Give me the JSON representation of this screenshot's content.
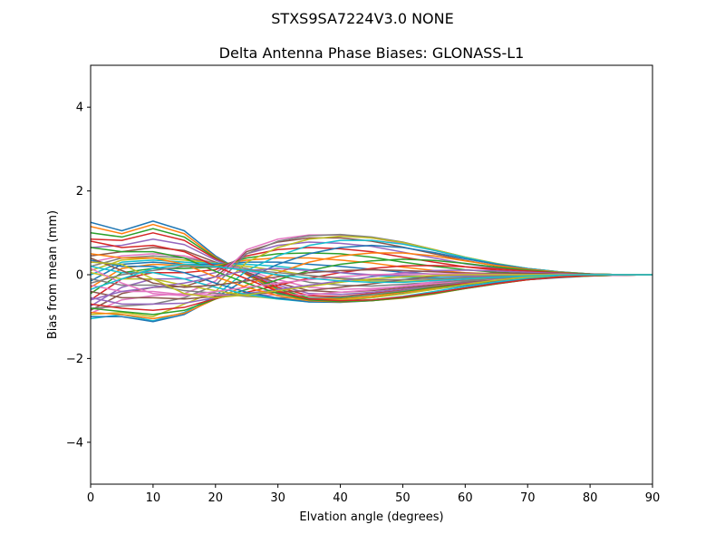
{
  "chart_data": {
    "type": "line",
    "suptitle": "STXS9SA7224V3.0 NONE",
    "title": "Delta Antenna Phase Biases: GLONASS-L1",
    "xlabel": "Elvation angle (degrees)",
    "ylabel": "Bias from mean (mm)",
    "xlim": [
      0,
      90
    ],
    "ylim": [
      -5,
      5
    ],
    "xticks": [
      0,
      10,
      20,
      30,
      40,
      50,
      60,
      70,
      80,
      90
    ],
    "yticks": [
      -4,
      -2,
      0,
      2,
      4
    ],
    "ytick_labels": [
      "−4",
      "−2",
      "0",
      "2",
      "4"
    ],
    "grid": false,
    "legend": "none",
    "colors": [
      "#1f77b4",
      "#ff7f0e",
      "#2ca02c",
      "#d62728",
      "#9467bd",
      "#8c564b",
      "#e377c2",
      "#7f7f7f",
      "#bcbd22",
      "#17becf"
    ],
    "x": [
      0,
      5,
      10,
      15,
      20,
      25,
      30,
      35,
      40,
      45,
      50,
      55,
      60,
      65,
      70,
      75,
      80,
      85,
      90
    ],
    "series": [
      {
        "values": [
          1.25,
          1.05,
          1.28,
          1.05,
          0.45,
          0.0,
          -0.42,
          -0.62,
          -0.62,
          -0.55,
          -0.45,
          -0.35,
          -0.25,
          -0.18,
          -0.12,
          -0.07,
          -0.03,
          -0.01,
          0.0
        ]
      },
      {
        "values": [
          1.15,
          0.98,
          1.2,
          0.98,
          0.42,
          0.0,
          -0.38,
          -0.58,
          -0.58,
          -0.52,
          -0.42,
          -0.33,
          -0.23,
          -0.16,
          -0.11,
          -0.06,
          -0.03,
          -0.01,
          0.0
        ]
      },
      {
        "values": [
          1.0,
          0.9,
          1.1,
          0.9,
          0.4,
          0.02,
          -0.34,
          -0.55,
          -0.55,
          -0.48,
          -0.4,
          -0.3,
          -0.22,
          -0.15,
          -0.1,
          -0.06,
          -0.03,
          -0.01,
          0.0
        ]
      },
      {
        "values": [
          0.85,
          0.82,
          1.0,
          0.82,
          0.38,
          0.03,
          -0.3,
          -0.5,
          -0.52,
          -0.45,
          -0.37,
          -0.28,
          -0.2,
          -0.14,
          -0.09,
          -0.05,
          -0.02,
          -0.01,
          0.0
        ]
      },
      {
        "values": [
          0.65,
          0.7,
          0.85,
          0.72,
          0.35,
          0.05,
          -0.25,
          -0.45,
          -0.47,
          -0.42,
          -0.34,
          -0.26,
          -0.18,
          -0.13,
          -0.08,
          -0.05,
          -0.02,
          -0.01,
          0.0
        ]
      },
      {
        "values": [
          0.45,
          0.55,
          0.65,
          0.58,
          0.3,
          0.06,
          -0.2,
          -0.38,
          -0.42,
          -0.38,
          -0.31,
          -0.24,
          -0.17,
          -0.12,
          -0.08,
          -0.04,
          -0.02,
          -0.01,
          0.0
        ]
      },
      {
        "values": [
          0.3,
          0.45,
          0.5,
          0.45,
          0.28,
          0.1,
          -0.12,
          -0.3,
          -0.35,
          -0.33,
          -0.28,
          -0.21,
          -0.15,
          -0.1,
          -0.07,
          -0.04,
          -0.02,
          -0.01,
          0.0
        ]
      },
      {
        "values": [
          0.2,
          0.4,
          0.45,
          0.4,
          0.28,
          0.15,
          -0.02,
          -0.18,
          -0.25,
          -0.27,
          -0.23,
          -0.18,
          -0.13,
          -0.09,
          -0.06,
          -0.03,
          -0.01,
          0.0,
          0.0
        ]
      },
      {
        "values": [
          0.1,
          0.35,
          0.4,
          0.35,
          0.28,
          0.2,
          0.1,
          -0.02,
          -0.1,
          -0.15,
          -0.16,
          -0.13,
          -0.1,
          -0.07,
          -0.05,
          -0.03,
          -0.01,
          0.0,
          0.0
        ]
      },
      {
        "values": [
          0.0,
          0.3,
          0.35,
          0.3,
          0.27,
          0.25,
          0.2,
          0.12,
          0.05,
          -0.02,
          -0.06,
          -0.07,
          -0.06,
          -0.05,
          -0.03,
          -0.02,
          -0.01,
          0.0,
          0.0
        ]
      },
      {
        "values": [
          -0.15,
          0.25,
          0.3,
          0.25,
          0.25,
          0.3,
          0.3,
          0.25,
          0.2,
          0.13,
          0.06,
          0.01,
          -0.01,
          -0.02,
          -0.02,
          -0.01,
          0.0,
          0.0,
          0.0
        ]
      },
      {
        "values": [
          -0.3,
          0.15,
          0.25,
          0.22,
          0.22,
          0.35,
          0.4,
          0.4,
          0.35,
          0.28,
          0.18,
          0.1,
          0.05,
          0.02,
          0.0,
          0.0,
          0.0,
          0.0,
          0.0
        ]
      },
      {
        "values": [
          -0.45,
          0.05,
          0.15,
          0.15,
          0.18,
          0.4,
          0.5,
          0.52,
          0.5,
          0.42,
          0.3,
          0.2,
          0.12,
          0.06,
          0.03,
          0.01,
          0.0,
          0.0,
          0.0
        ]
      },
      {
        "values": [
          -0.6,
          -0.1,
          0.05,
          0.05,
          0.12,
          0.45,
          0.6,
          0.65,
          0.62,
          0.55,
          0.42,
          0.3,
          0.19,
          0.11,
          0.06,
          0.02,
          0.01,
          0.0,
          0.0
        ]
      },
      {
        "values": [
          -0.75,
          -0.3,
          -0.1,
          -0.1,
          0.05,
          0.5,
          0.7,
          0.78,
          0.75,
          0.68,
          0.54,
          0.4,
          0.26,
          0.16,
          0.09,
          0.04,
          0.01,
          0.0,
          0.0
        ]
      },
      {
        "values": [
          -0.85,
          -0.45,
          -0.3,
          -0.28,
          -0.05,
          0.55,
          0.78,
          0.88,
          0.88,
          0.8,
          0.66,
          0.5,
          0.34,
          0.21,
          0.12,
          0.05,
          0.02,
          0.0,
          0.0
        ]
      },
      {
        "values": [
          -0.92,
          -0.6,
          -0.5,
          -0.45,
          -0.15,
          0.6,
          0.85,
          0.95,
          0.95,
          0.88,
          0.75,
          0.58,
          0.4,
          0.25,
          0.14,
          0.06,
          0.02,
          0.0,
          0.0
        ]
      },
      {
        "values": [
          -0.8,
          -0.75,
          -0.7,
          -0.55,
          -0.25,
          0.5,
          0.8,
          0.93,
          0.96,
          0.9,
          0.78,
          0.6,
          0.42,
          0.26,
          0.15,
          0.07,
          0.02,
          0.0,
          0.0
        ]
      },
      {
        "values": [
          -0.95,
          -0.9,
          -1.0,
          -0.7,
          -0.4,
          0.3,
          0.65,
          0.85,
          0.92,
          0.88,
          0.77,
          0.6,
          0.42,
          0.27,
          0.15,
          0.07,
          0.02,
          0.0,
          0.0
        ]
      },
      {
        "values": [
          -1.05,
          -0.95,
          -1.1,
          -0.9,
          -0.5,
          0.1,
          0.45,
          0.7,
          0.82,
          0.82,
          0.73,
          0.58,
          0.41,
          0.26,
          0.15,
          0.07,
          0.02,
          0.0,
          0.0
        ]
      },
      {
        "values": [
          -1.0,
          -1.0,
          -1.12,
          -0.95,
          -0.55,
          -0.1,
          0.25,
          0.5,
          0.65,
          0.7,
          0.65,
          0.53,
          0.38,
          0.25,
          0.14,
          0.06,
          0.02,
          0.0,
          0.0
        ]
      },
      {
        "values": [
          -0.9,
          -0.95,
          -1.05,
          -0.92,
          -0.58,
          -0.25,
          0.05,
          0.3,
          0.45,
          0.52,
          0.52,
          0.45,
          0.33,
          0.22,
          0.13,
          0.06,
          0.02,
          0.0,
          0.0
        ]
      },
      {
        "values": [
          -0.8,
          -0.88,
          -0.95,
          -0.85,
          -0.58,
          -0.35,
          -0.12,
          0.1,
          0.25,
          0.33,
          0.37,
          0.34,
          0.27,
          0.18,
          0.11,
          0.05,
          0.02,
          0.0,
          0.0
        ]
      },
      {
        "values": [
          -0.7,
          -0.8,
          -0.85,
          -0.78,
          -0.57,
          -0.42,
          -0.25,
          -0.08,
          0.05,
          0.15,
          0.21,
          0.22,
          0.19,
          0.14,
          0.09,
          0.04,
          0.01,
          0.0,
          0.0
        ]
      },
      {
        "values": [
          -0.55,
          -0.7,
          -0.7,
          -0.68,
          -0.55,
          -0.45,
          -0.35,
          -0.25,
          -0.15,
          -0.05,
          0.05,
          0.1,
          0.11,
          0.09,
          0.06,
          0.03,
          0.01,
          0.0,
          0.0
        ]
      },
      {
        "values": [
          -0.4,
          -0.55,
          -0.55,
          -0.58,
          -0.52,
          -0.48,
          -0.42,
          -0.38,
          -0.3,
          -0.22,
          -0.12,
          -0.04,
          0.02,
          0.04,
          0.03,
          0.02,
          0.01,
          0.0,
          0.0
        ]
      },
      {
        "values": [
          -0.25,
          -0.4,
          -0.4,
          -0.48,
          -0.48,
          -0.5,
          -0.48,
          -0.48,
          -0.42,
          -0.36,
          -0.27,
          -0.17,
          -0.08,
          -0.02,
          0.0,
          0.01,
          0.0,
          0.0,
          0.0
        ]
      },
      {
        "values": [
          -0.1,
          -0.25,
          -0.25,
          -0.38,
          -0.44,
          -0.52,
          -0.55,
          -0.56,
          -0.53,
          -0.47,
          -0.38,
          -0.27,
          -0.16,
          -0.08,
          -0.03,
          -0.01,
          0.0,
          0.0,
          0.0
        ]
      },
      {
        "values": [
          0.05,
          -0.1,
          -0.1,
          -0.25,
          -0.38,
          -0.5,
          -0.58,
          -0.62,
          -0.6,
          -0.55,
          -0.46,
          -0.35,
          -0.23,
          -0.13,
          -0.06,
          -0.02,
          -0.01,
          0.0,
          0.0
        ]
      },
      {
        "values": [
          0.2,
          0.05,
          0.05,
          -0.1,
          -0.3,
          -0.47,
          -0.58,
          -0.65,
          -0.64,
          -0.6,
          -0.52,
          -0.4,
          -0.28,
          -0.17,
          -0.09,
          -0.04,
          -0.01,
          0.0,
          0.0
        ]
      },
      {
        "values": [
          0.35,
          0.2,
          0.2,
          0.05,
          -0.2,
          -0.42,
          -0.56,
          -0.65,
          -0.66,
          -0.62,
          -0.55,
          -0.44,
          -0.31,
          -0.2,
          -0.11,
          -0.05,
          -0.02,
          0.0,
          0.0
        ]
      },
      {
        "values": [
          0.5,
          0.4,
          0.4,
          0.25,
          -0.05,
          -0.3,
          -0.5,
          -0.62,
          -0.65,
          -0.62,
          -0.56,
          -0.46,
          -0.33,
          -0.22,
          -0.12,
          -0.05,
          -0.02,
          0.0,
          0.0
        ]
      },
      {
        "values": [
          0.65,
          0.55,
          0.55,
          0.4,
          0.08,
          -0.2,
          -0.45,
          -0.6,
          -0.64,
          -0.62,
          -0.55,
          -0.45,
          -0.33,
          -0.22,
          -0.12,
          -0.06,
          -0.02,
          0.0,
          0.0
        ]
      },
      {
        "values": [
          0.8,
          0.65,
          0.7,
          0.55,
          0.2,
          -0.1,
          -0.4,
          -0.58,
          -0.62,
          -0.6,
          -0.53,
          -0.43,
          -0.32,
          -0.21,
          -0.12,
          -0.06,
          -0.02,
          0.0,
          0.0
        ]
      },
      {
        "values": [
          -0.6,
          -0.4,
          -0.3,
          -0.2,
          -0.05,
          0.1,
          0.15,
          0.1,
          0.05,
          0.0,
          -0.02,
          -0.03,
          -0.03,
          -0.02,
          -0.02,
          -0.01,
          0.0,
          0.0,
          0.0
        ]
      },
      {
        "values": [
          0.4,
          0.1,
          -0.2,
          -0.3,
          -0.25,
          -0.15,
          -0.05,
          0.05,
          0.1,
          0.12,
          0.1,
          0.07,
          0.04,
          0.02,
          0.01,
          0.0,
          0.0,
          0.0,
          0.0
        ]
      },
      {
        "values": [
          0.15,
          -0.2,
          -0.45,
          -0.5,
          -0.4,
          -0.3,
          -0.2,
          -0.12,
          -0.05,
          0.0,
          0.02,
          0.02,
          0.02,
          0.01,
          0.0,
          0.0,
          0.0,
          0.0,
          0.0
        ]
      },
      {
        "values": [
          -0.2,
          0.0,
          0.1,
          0.2,
          0.18,
          0.12,
          0.05,
          -0.02,
          -0.08,
          -0.12,
          -0.12,
          -0.1,
          -0.07,
          -0.04,
          -0.02,
          -0.01,
          0.0,
          0.0,
          0.0
        ]
      },
      {
        "values": [
          0.3,
          0.25,
          -0.1,
          -0.45,
          -0.55,
          -0.48,
          -0.38,
          -0.28,
          -0.18,
          -0.1,
          -0.05,
          -0.02,
          0.0,
          0.0,
          0.0,
          0.0,
          0.0,
          0.0,
          0.0
        ]
      },
      {
        "values": [
          -0.35,
          -0.1,
          0.15,
          0.25,
          0.2,
          0.1,
          0.0,
          -0.08,
          -0.15,
          -0.18,
          -0.18,
          -0.14,
          -0.1,
          -0.06,
          -0.03,
          -0.01,
          0.0,
          0.0,
          0.0
        ]
      }
    ]
  }
}
